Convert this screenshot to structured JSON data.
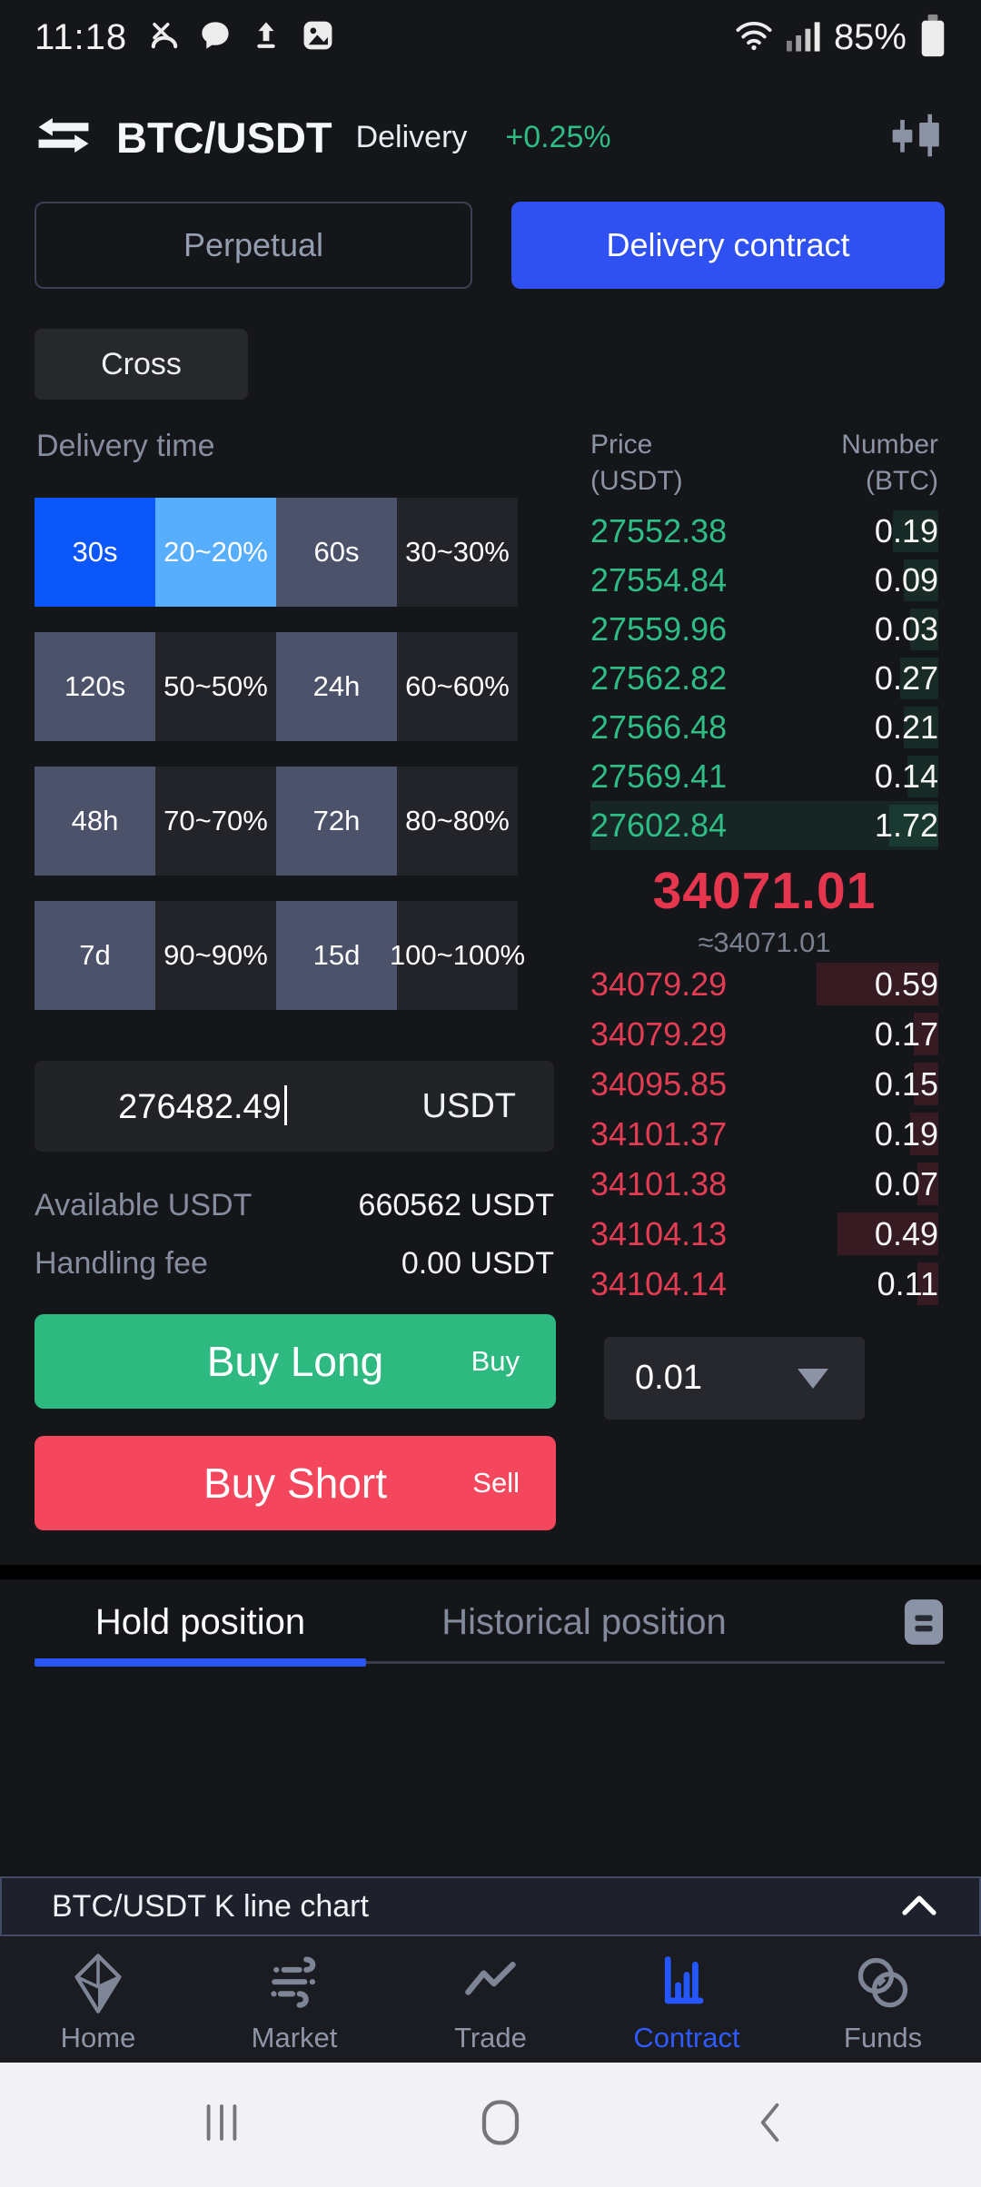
{
  "status_bar": {
    "time": "11:18",
    "battery": "85%"
  },
  "header": {
    "pair": "BTC/USDT",
    "market": "Delivery",
    "change": "+0.25%"
  },
  "contract_tabs": {
    "items": [
      {
        "label": "Perpetual"
      },
      {
        "label": "Delivery contract"
      }
    ]
  },
  "margin_mode": {
    "label": "Cross"
  },
  "delivery_time": {
    "label": "Delivery time",
    "options": [
      {
        "label": "30s",
        "variant": "blue"
      },
      {
        "label": "20~20%",
        "variant": "lightblue"
      },
      {
        "label": "60s",
        "variant": "slate"
      },
      {
        "label": "30~30%",
        "variant": "dark"
      },
      {
        "label": "120s",
        "variant": "slate"
      },
      {
        "label": "50~50%",
        "variant": "dark"
      },
      {
        "label": "24h",
        "variant": "slate"
      },
      {
        "label": "60~60%",
        "variant": "dark"
      },
      {
        "label": "48h",
        "variant": "slate"
      },
      {
        "label": "70~70%",
        "variant": "dark"
      },
      {
        "label": "72h",
        "variant": "slate"
      },
      {
        "label": "80~80%",
        "variant": "dark"
      },
      {
        "label": "7d",
        "variant": "slate"
      },
      {
        "label": "90~90%",
        "variant": "dark"
      },
      {
        "label": "15d",
        "variant": "slate"
      },
      {
        "label": "100~100%",
        "variant": "dark"
      }
    ]
  },
  "order_form": {
    "amount": {
      "value": "276482.49",
      "unit": "USDT"
    },
    "available": {
      "label": "Available USDT",
      "value": "660562 USDT"
    },
    "fee": {
      "label": "Handling fee",
      "value": "0.00 USDT"
    },
    "buy_long": {
      "label": "Buy Long",
      "side": "Buy"
    },
    "buy_short": {
      "label": "Buy Short",
      "side": "Sell"
    }
  },
  "order_book": {
    "headers": {
      "price": "Price",
      "price_unit": "(USDT)",
      "number": "Number",
      "number_unit": "(BTC)"
    },
    "asks": [
      {
        "price": "27552.38",
        "qty": "0.19",
        "depth": 13
      },
      {
        "price": "27554.84",
        "qty": "0.09",
        "depth": 10
      },
      {
        "price": "27559.96",
        "qty": "0.03",
        "depth": 8
      },
      {
        "price": "27562.82",
        "qty": "0.27",
        "depth": 11
      },
      {
        "price": "27566.48",
        "qty": "0.21",
        "depth": 10
      },
      {
        "price": "27569.41",
        "qty": "0.14",
        "depth": 9
      },
      {
        "price": "27602.84",
        "qty": "1.72",
        "depth": 14,
        "highlight": true
      }
    ],
    "last": {
      "price": "34071.01",
      "approx": "≈34071.01"
    },
    "bids": [
      {
        "price": "34079.29",
        "qty": "0.59",
        "depth": 35
      },
      {
        "price": "34079.29",
        "qty": "0.17",
        "depth": 7
      },
      {
        "price": "34095.85",
        "qty": "0.15",
        "depth": 7
      },
      {
        "price": "34101.37",
        "qty": "0.19",
        "depth": 8
      },
      {
        "price": "34101.38",
        "qty": "0.07",
        "depth": 6
      },
      {
        "price": "34104.13",
        "qty": "0.49",
        "depth": 29
      },
      {
        "price": "34104.14",
        "qty": "0.11",
        "depth": 6
      }
    ],
    "step": {
      "value": "0.01"
    }
  },
  "positions": {
    "tabs": [
      {
        "label": "Hold position",
        "active": true
      },
      {
        "label": "Historical position",
        "active": false
      }
    ]
  },
  "kline": {
    "label": "BTC/USDT K line chart"
  },
  "bottom_nav": {
    "items": [
      {
        "label": "Home",
        "icon": "home-icon",
        "active": false
      },
      {
        "label": "Market",
        "icon": "market-icon",
        "active": false
      },
      {
        "label": "Trade",
        "icon": "trade-icon",
        "active": false
      },
      {
        "label": "Contract",
        "icon": "contract-icon",
        "active": true
      },
      {
        "label": "Funds",
        "icon": "funds-icon",
        "active": false
      }
    ]
  },
  "colors": {
    "accent_blue": "#3051f1",
    "bright_blue": "#0b57fa",
    "light_blue": "#57aefd",
    "slate": "#4d526b",
    "green": "#2ebd85",
    "red": "#e43c53",
    "buy_green": "#2eb980",
    "sell_red": "#f4465c",
    "tab_blue": "#2b56f3"
  }
}
